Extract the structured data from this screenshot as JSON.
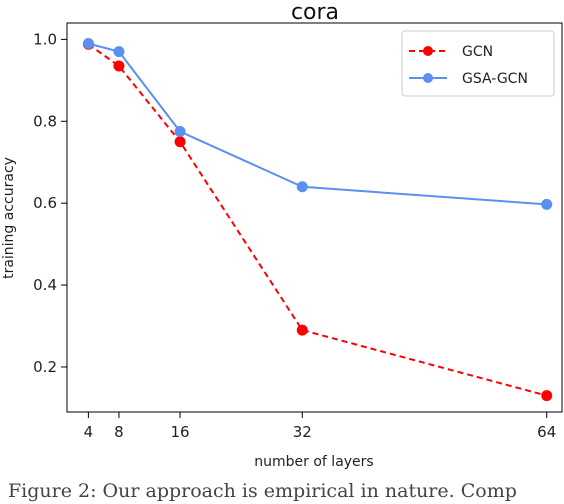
{
  "chart_data": {
    "type": "line",
    "title": "cora",
    "xlabel": "number of layers",
    "ylabel": "training accuracy",
    "x": [
      4,
      8,
      16,
      32,
      64
    ],
    "xticks": [
      4,
      8,
      16,
      32,
      64
    ],
    "yticks": [
      0.2,
      0.4,
      0.6,
      0.8,
      1.0
    ],
    "ytick_labels": [
      "0.2",
      "0.4",
      "0.6",
      "0.8",
      "1.0"
    ],
    "xlim": [
      1.2,
      66.0
    ],
    "ylim": [
      0.09,
      1.04
    ],
    "grid": false,
    "legend_position": "top-right",
    "series": [
      {
        "name": "GCN",
        "values": [
          0.988,
          0.935,
          0.75,
          0.29,
          0.13
        ],
        "color": "#ff0000",
        "line_style": "dashed",
        "marker": "circle"
      },
      {
        "name": "GSA-GCN",
        "values": [
          0.99,
          0.97,
          0.775,
          0.64,
          0.597
        ],
        "color": "#5b8ff2",
        "line_style": "solid",
        "marker": "circle"
      }
    ]
  },
  "caption": {
    "text": "Figure 2:  Our approach is empirical in nature. Comp"
  }
}
